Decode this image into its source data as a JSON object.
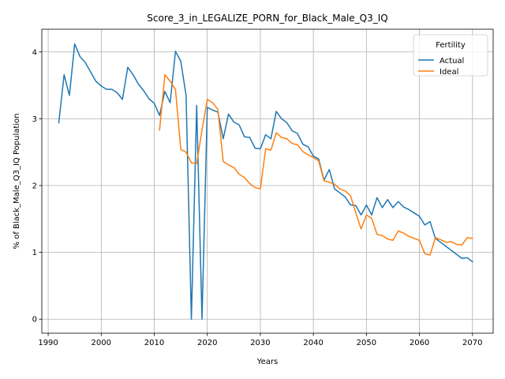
{
  "chart_data": {
    "type": "line",
    "title": "Score_3_in_LEGALIZE_PORN_for_Black_Male_Q3_IQ",
    "xlabel": "Years",
    "ylabel": "% of Black_Male_Q3_IQ Population",
    "xlim": [
      1988.8,
      2073.9
    ],
    "ylim": [
      -0.21,
      4.34
    ],
    "xticks": [
      1990,
      2000,
      2010,
      2020,
      2030,
      2040,
      2050,
      2060,
      2070
    ],
    "yticks": [
      0,
      1,
      2,
      3,
      4
    ],
    "grid": true,
    "legend": {
      "title": "Fertility",
      "placement": "top-right"
    },
    "series": [
      {
        "name": "Actual",
        "color": "#1f77b4",
        "x": [
          1992,
          1993,
          1994,
          1995,
          1996,
          1997,
          1998,
          1999,
          2000,
          2001,
          2002,
          2003,
          2004,
          2005,
          2006,
          2007,
          2008,
          2009,
          2010,
          2011,
          2012,
          2013,
          2014,
          2015,
          2016,
          2017,
          2018,
          2019,
          2020,
          2021,
          2022,
          2023,
          2024,
          2025,
          2026,
          2027,
          2028,
          2029,
          2030,
          2031,
          2032,
          2033,
          2034,
          2035,
          2036,
          2037,
          2038,
          2039,
          2040,
          2041,
          2042,
          2043,
          2044,
          2045,
          2046,
          2047,
          2048,
          2049,
          2050,
          2051,
          2052,
          2053,
          2054,
          2055,
          2056,
          2057,
          2058,
          2059,
          2060,
          2061,
          2062,
          2063,
          2064,
          2065,
          2066,
          2067,
          2068,
          2069,
          2070
        ],
        "values": [
          2.94,
          3.66,
          3.35,
          4.12,
          3.93,
          3.84,
          3.7,
          3.56,
          3.49,
          3.44,
          3.44,
          3.39,
          3.29,
          3.77,
          3.66,
          3.52,
          3.42,
          3.3,
          3.23,
          3.05,
          3.41,
          3.24,
          4.01,
          3.86,
          3.35,
          0.0,
          3.2,
          0.0,
          3.17,
          3.13,
          3.1,
          2.7,
          3.07,
          2.95,
          2.91,
          2.73,
          2.72,
          2.56,
          2.55,
          2.76,
          2.7,
          3.11,
          3.0,
          2.94,
          2.82,
          2.78,
          2.62,
          2.58,
          2.44,
          2.4,
          2.08,
          2.24,
          1.95,
          1.89,
          1.83,
          1.71,
          1.7,
          1.56,
          1.71,
          1.56,
          1.82,
          1.67,
          1.79,
          1.67,
          1.76,
          1.68,
          1.64,
          1.59,
          1.54,
          1.41,
          1.46,
          1.21,
          1.15,
          1.09,
          1.03,
          0.97,
          0.91,
          0.92,
          0.86
        ]
      },
      {
        "name": "Ideal",
        "color": "#ff7f0e",
        "x": [
          2011,
          2012,
          2013,
          2014,
          2015,
          2016,
          2017,
          2018,
          2019,
          2020,
          2021,
          2022,
          2023,
          2024,
          2025,
          2026,
          2027,
          2028,
          2029,
          2030,
          2031,
          2032,
          2033,
          2034,
          2035,
          2036,
          2037,
          2038,
          2039,
          2040,
          2041,
          2042,
          2043,
          2044,
          2045,
          2046,
          2047,
          2048,
          2049,
          2050,
          2051,
          2052,
          2053,
          2054,
          2055,
          2056,
          2057,
          2058,
          2059,
          2060,
          2061,
          2062,
          2063,
          2064,
          2065,
          2066,
          2067,
          2068,
          2069,
          2070
        ],
        "values": [
          2.83,
          3.66,
          3.56,
          3.44,
          2.54,
          2.5,
          2.34,
          2.33,
          2.83,
          3.29,
          3.24,
          3.14,
          2.36,
          2.31,
          2.27,
          2.17,
          2.12,
          2.03,
          1.97,
          1.95,
          2.55,
          2.53,
          2.79,
          2.72,
          2.7,
          2.63,
          2.61,
          2.51,
          2.46,
          2.42,
          2.37,
          2.07,
          2.05,
          2.02,
          1.95,
          1.92,
          1.85,
          1.59,
          1.35,
          1.56,
          1.51,
          1.27,
          1.25,
          1.2,
          1.18,
          1.32,
          1.29,
          1.24,
          1.21,
          1.18,
          0.98,
          0.96,
          1.22,
          1.19,
          1.15,
          1.16,
          1.12,
          1.11,
          1.22,
          1.21
        ]
      }
    ]
  }
}
